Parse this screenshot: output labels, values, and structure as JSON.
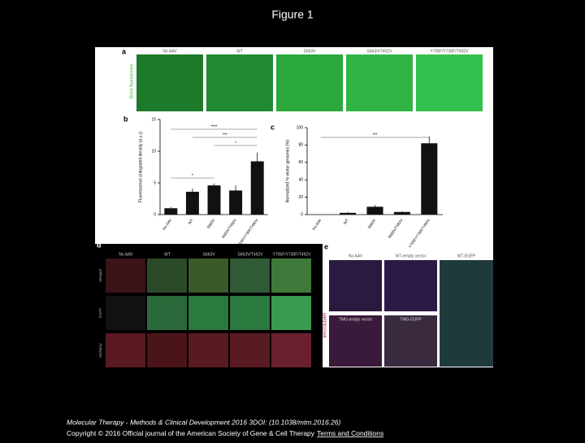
{
  "title": "Figure 1",
  "figure": {
    "panel_a": {
      "label": "a",
      "side_label": "Direct fluorescence",
      "columns": [
        "No AAV",
        "WT",
        "S663V",
        "S663V/T492V",
        "Y705F/Y730F/T492V"
      ]
    },
    "panel_b": {
      "label": "b",
      "ylabel": "Fluorescence (integrated density (a.u.))",
      "categories": [
        "No AAV",
        "WT",
        "S663V",
        "S663V/T492V",
        "Y705F/Y730F/T492V"
      ],
      "values": [
        1.0,
        3.6,
        4.6,
        3.8,
        8.4
      ],
      "errors": [
        0.2,
        0.5,
        0.3,
        0.8,
        1.4
      ],
      "ylim": [
        0,
        15
      ],
      "yticks": [
        0,
        5,
        10,
        15
      ],
      "annotations": [
        "****",
        "***",
        "*",
        "*"
      ]
    },
    "panel_c": {
      "label": "c",
      "ylabel": "Normalized % vector genomes (%)",
      "categories": [
        "No AAV",
        "WT",
        "S663V",
        "S663V/T492V",
        "Y705F/Y730F/T492V"
      ],
      "values": [
        0,
        2,
        9,
        3,
        82
      ],
      "errors": [
        0,
        1,
        2,
        1,
        8
      ],
      "ylim": [
        0,
        100
      ],
      "yticks": [
        0,
        20,
        40,
        60,
        80,
        100
      ],
      "annotations": [
        "***"
      ]
    },
    "panel_d": {
      "label": "d",
      "columns": [
        "No AAV",
        "WT",
        "S663V",
        "S663V/T492V",
        "Y705F/Y730F/T492V"
      ],
      "rows": [
        "Merged",
        "EGFP",
        "mCherry"
      ]
    },
    "panel_e": {
      "label": "e",
      "side_label": "MYO7A/DAPI",
      "images": [
        "No AAV",
        "WT-empty vector",
        "WT-EGFP",
        "TMG-empty vector",
        "TMG-EGFP"
      ]
    }
  },
  "footer": {
    "journal": "Molecular Therapy - Methods & Clinical Development 2016 3DOI: (10.1038/mtm.2016.26)",
    "copyright": "Copyright © 2016 Official journal of the American Society of Gene & Cell Therapy",
    "link": "Terms and Conditions"
  }
}
